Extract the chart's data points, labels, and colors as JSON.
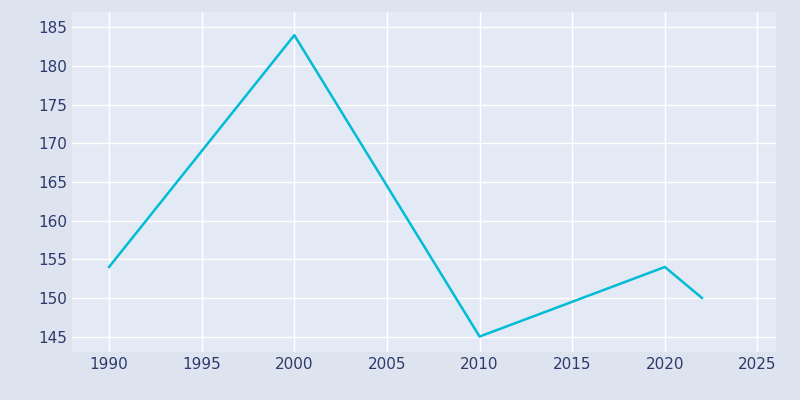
{
  "years": [
    1990,
    2000,
    2010,
    2020,
    2021,
    2022
  ],
  "population": [
    154,
    184,
    145,
    154,
    152,
    150
  ],
  "line_color": "#00bcd4",
  "background_color": "#dde4f0",
  "plot_bg_color": "#e4eaf5",
  "grid_color": "#ffffff",
  "tick_color": "#2d3a6b",
  "xlim": [
    1988,
    2026
  ],
  "ylim": [
    143,
    187
  ],
  "yticks": [
    145,
    150,
    155,
    160,
    165,
    170,
    175,
    180,
    185
  ],
  "xticks": [
    1990,
    1995,
    2000,
    2005,
    2010,
    2015,
    2020,
    2025
  ],
  "line_width": 1.8,
  "tick_fontsize": 11
}
